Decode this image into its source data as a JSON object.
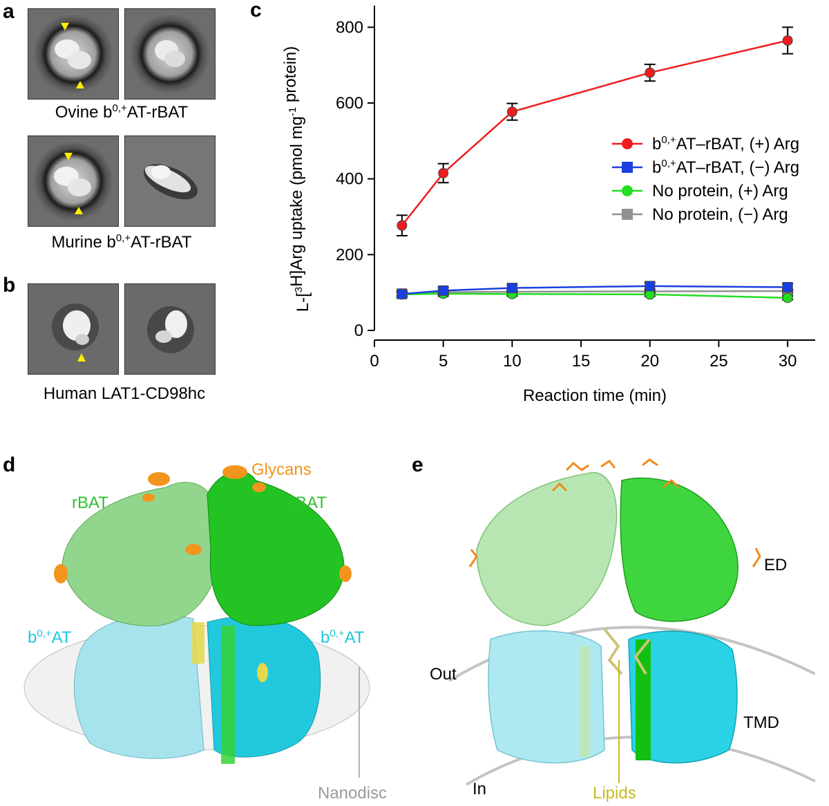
{
  "panels": {
    "a": {
      "letter": "a",
      "caption1_pre": "Ovine b",
      "caption1_sup": "0,+",
      "caption1_post": "AT-rBAT",
      "caption2_pre": "Murine b",
      "caption2_sup": "0,+",
      "caption2_post": "AT-rBAT"
    },
    "b": {
      "letter": "b",
      "caption": "Human LAT1-CD98hc"
    },
    "c": {
      "letter": "c"
    },
    "d": {
      "letter": "d",
      "glycans": "Glycans",
      "rbat_left": "rBAT",
      "rbat_right": "rBAT",
      "b0at_pre": "b",
      "b0at_sup": "0,+",
      "b0at_post": "AT",
      "nanodisc": "Nanodisc",
      "colors": {
        "rbat_light": "#8fd48a",
        "rbat_dark": "#1fc21f",
        "b0at_light": "#9fe0ea",
        "b0at_dark": "#1ec8dc",
        "glycan": "#f3941c",
        "lipid": "#e5d84a",
        "nanodisc": "#e8e8e8"
      }
    },
    "e": {
      "letter": "e",
      "ed": "ED",
      "out": "Out",
      "in": "In",
      "tmd": "TMD",
      "lipids": "Lipids"
    }
  },
  "chart_data": {
    "type": "line",
    "xlabel": "Reaction time (min)",
    "ylabel_pre": "L-[",
    "ylabel_sup1": "3",
    "ylabel_mid": "H]Arg uptake (pmol mg",
    "ylabel_sup2": "-1",
    "ylabel_post": " protein)",
    "xlim": [
      0,
      32
    ],
    "ylim": [
      0,
      850
    ],
    "xticks": [
      0,
      5,
      10,
      15,
      20,
      25,
      30
    ],
    "yticks": [
      0,
      200,
      400,
      600,
      800
    ],
    "x": [
      2,
      5,
      10,
      20,
      30
    ],
    "series": [
      {
        "name_pre": "b",
        "name_sup": "0,+",
        "name_post": "AT–rBAT, (+) Arg",
        "color": "#ee1c1c",
        "marker": "circle",
        "values": [
          277,
          415,
          577,
          680,
          765
        ],
        "errors": [
          27,
          25,
          22,
          22,
          35
        ]
      },
      {
        "name_pre": "b",
        "name_sup": "0,+",
        "name_post": "AT–rBAT, (−) Arg",
        "color": "#1a3fe0",
        "marker": "square",
        "values": [
          96,
          105,
          112,
          117,
          114
        ],
        "errors": [
          8,
          9,
          9,
          9,
          9
        ]
      },
      {
        "name_pre": "",
        "name_sup": "",
        "name_post": "No protein, (+) Arg",
        "color": "#22dd22",
        "marker": "circle",
        "values": [
          95,
          97,
          96,
          95,
          86
        ],
        "errors": [
          5,
          5,
          5,
          5,
          5
        ]
      },
      {
        "name_pre": "",
        "name_sup": "",
        "name_post": "No protein, (−) Arg",
        "color": "#909090",
        "marker": "square",
        "values": [
          97,
          101,
          102,
          103,
          104
        ],
        "errors": [
          5,
          5,
          5,
          5,
          5
        ]
      }
    ],
    "legend_position": "right-center"
  }
}
